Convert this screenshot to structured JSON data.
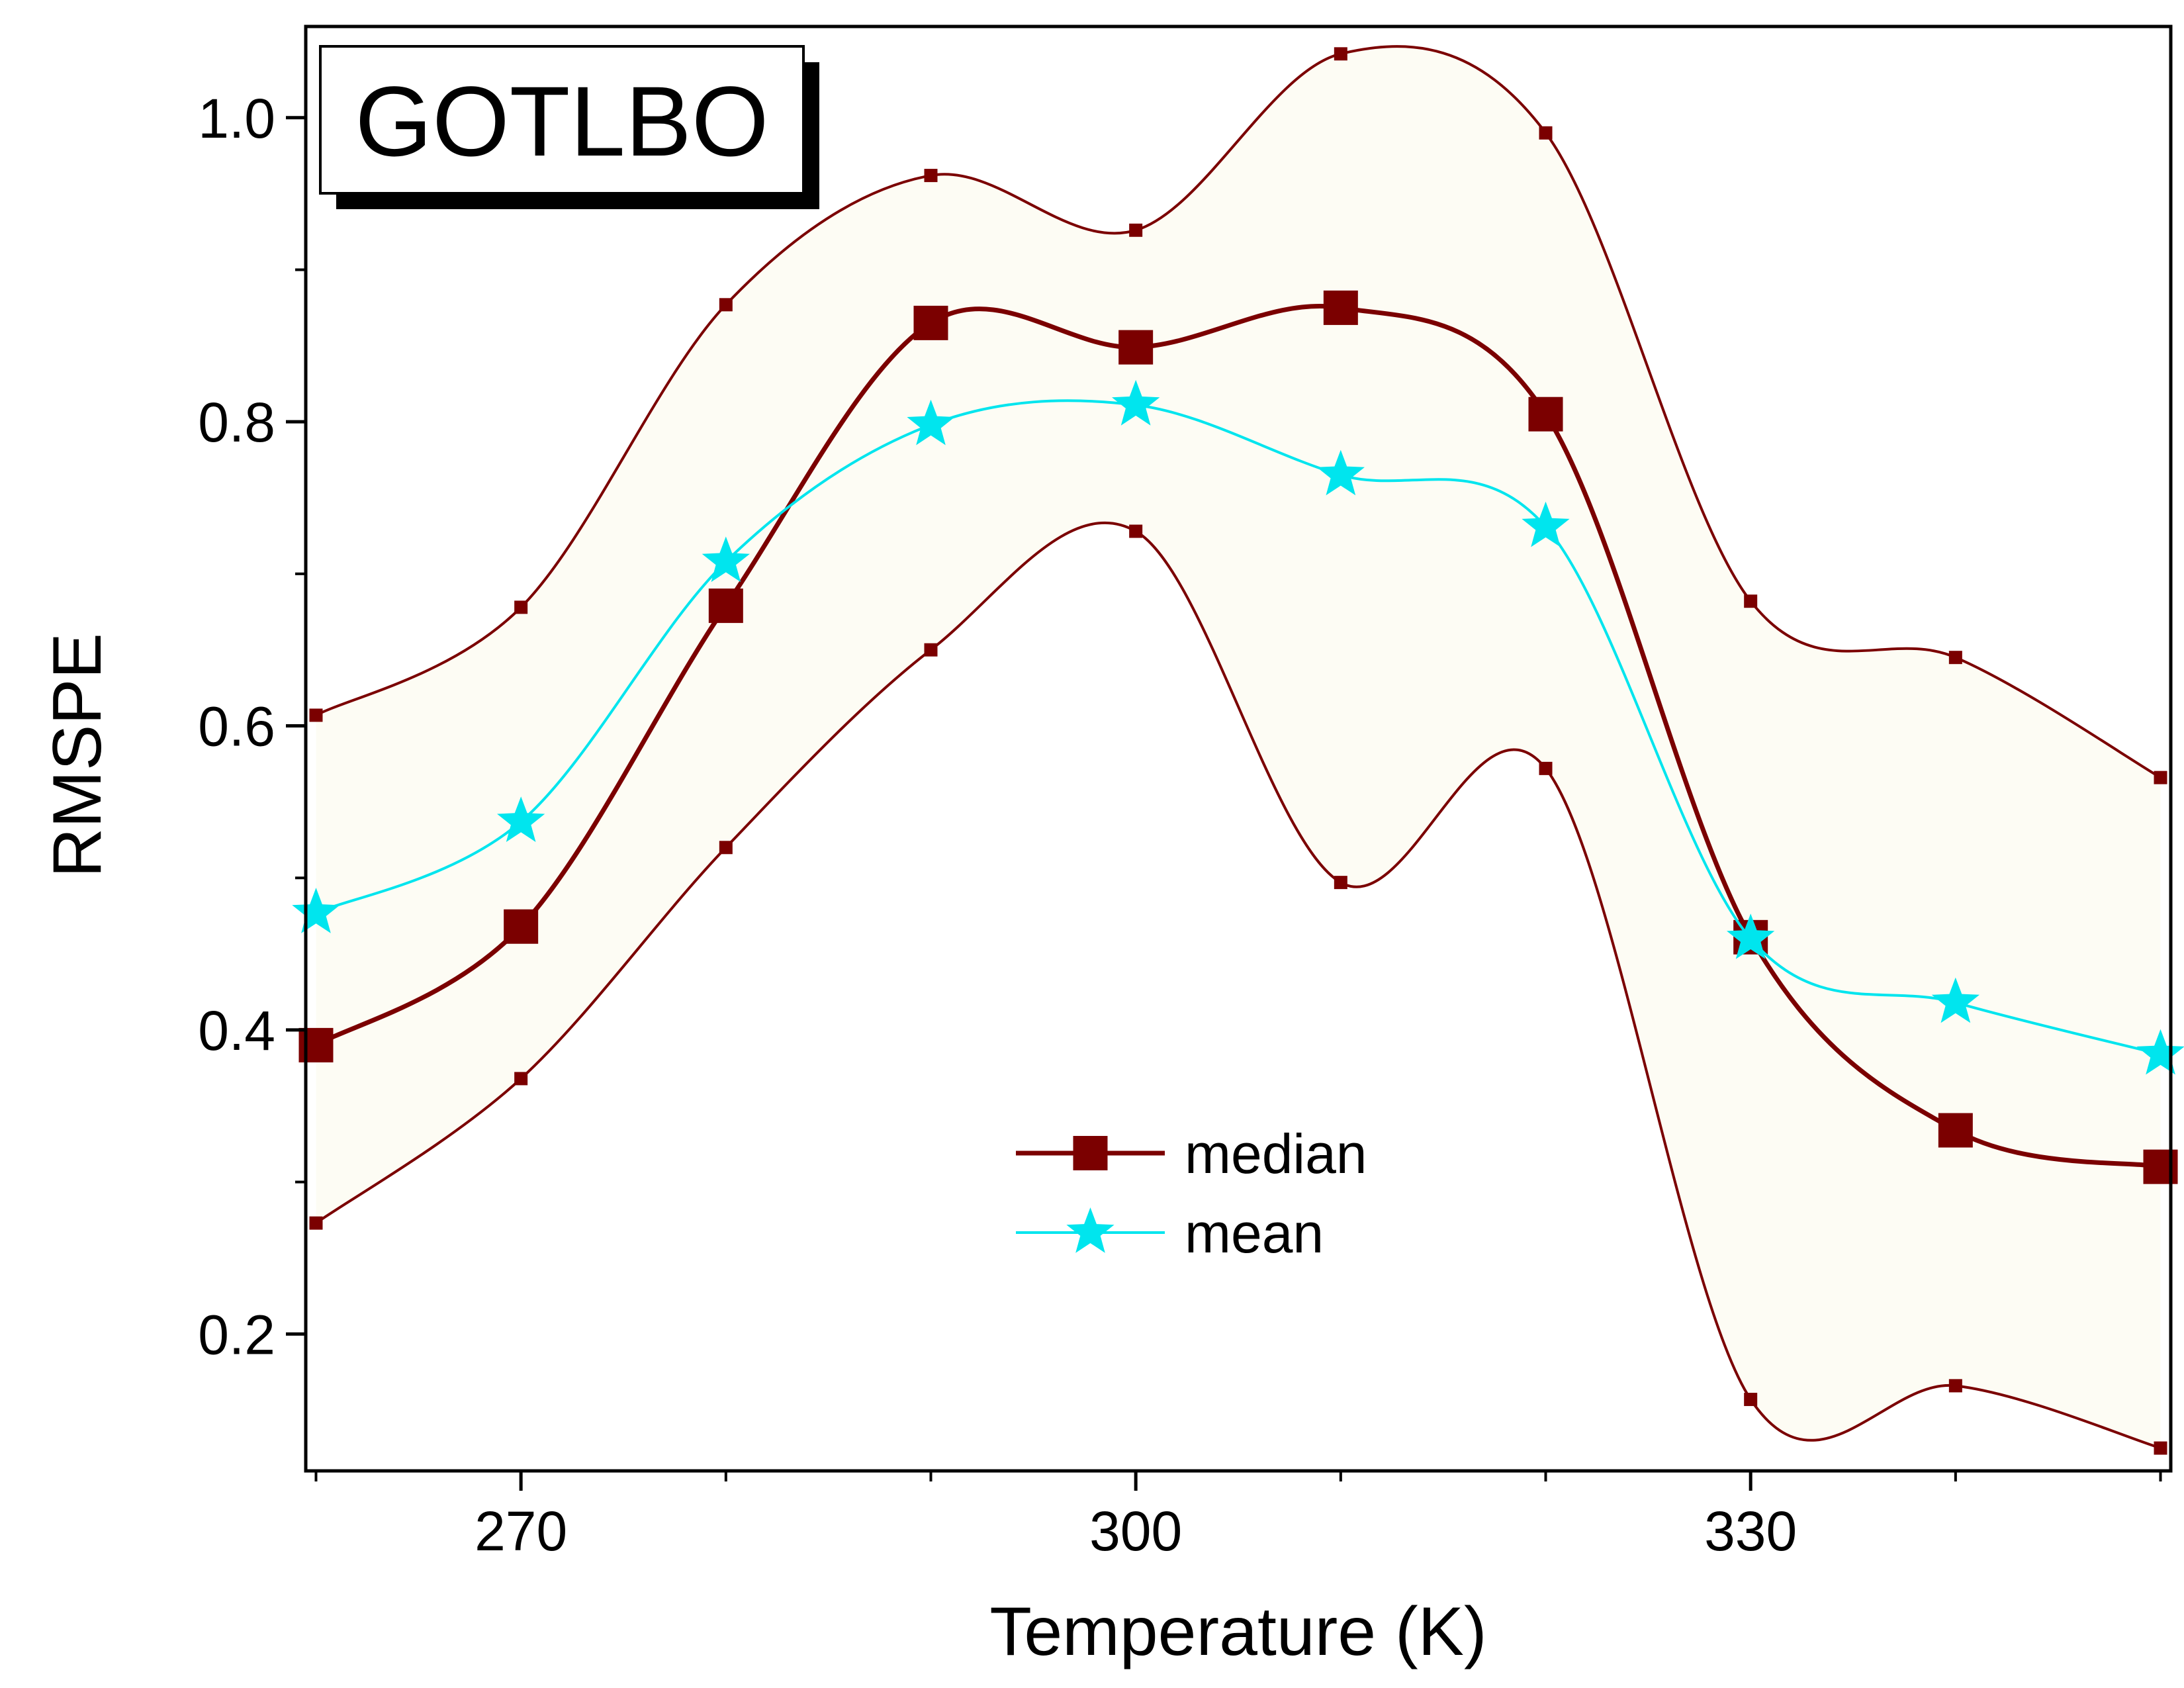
{
  "chart_data": {
    "type": "line",
    "panel_label": "GOTLBO",
    "xlabel": "Temperature (K)",
    "ylabel": "RMSPE",
    "xlim": [
      259.5,
      350.5
    ],
    "ylim": [
      0.11,
      1.06
    ],
    "xticks": [
      270,
      300,
      330
    ],
    "xtick_labels": [
      "270",
      "300",
      "330"
    ],
    "x_minor_ticks": [
      260,
      280,
      290,
      310,
      320,
      340,
      350
    ],
    "yticks": [
      0.2,
      0.4,
      0.6,
      0.8,
      1.0
    ],
    "ytick_labels": [
      "0.2",
      "0.4",
      "0.6",
      "0.8",
      "1.0"
    ],
    "y_minor_ticks": [
      0.3,
      0.5,
      0.7,
      0.9
    ],
    "grid": false,
    "legend_position": "lower-center",
    "x": [
      260,
      270,
      280,
      290,
      300,
      310,
      320,
      330,
      340,
      350
    ],
    "band": {
      "upper": [
        0.607,
        0.678,
        0.877,
        0.962,
        0.926,
        1.042,
        0.99,
        0.682,
        0.645,
        0.566
      ],
      "lower": [
        0.273,
        0.368,
        0.52,
        0.65,
        0.728,
        0.497,
        0.572,
        0.157,
        0.166,
        0.125
      ],
      "line_color": "#7b0000",
      "fill_color": "#fdfcf4"
    },
    "series": [
      {
        "name": "median",
        "values": [
          0.39,
          0.468,
          0.679,
          0.865,
          0.849,
          0.875,
          0.805,
          0.461,
          0.334,
          0.31
        ],
        "color": "#7b0000",
        "marker": "square"
      },
      {
        "name": "mean",
        "values": [
          0.477,
          0.537,
          0.708,
          0.798,
          0.811,
          0.765,
          0.731,
          0.46,
          0.418,
          0.384
        ],
        "color": "#00e5ee",
        "marker": "star"
      }
    ]
  }
}
